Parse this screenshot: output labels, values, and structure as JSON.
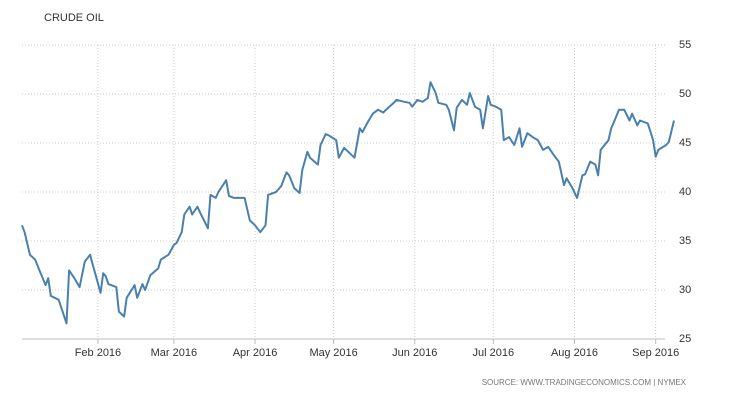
{
  "chart_data": {
    "type": "line",
    "title": "CRUDE OIL",
    "source": "SOURCE: WWW.TRADINGECONOMICS.COM | NYMEX",
    "x": [
      2,
      3,
      5,
      7,
      9,
      11,
      12,
      13,
      16,
      19,
      20,
      22,
      24,
      26,
      28,
      29,
      32,
      33,
      34,
      35,
      38,
      39,
      41,
      42,
      45,
      46,
      48,
      49,
      51,
      54,
      55,
      58,
      60,
      61,
      63,
      64,
      66,
      67,
      69,
      70,
      73,
      74,
      76,
      77,
      80,
      81,
      83,
      87,
      89,
      91,
      93,
      95,
      96,
      99,
      101,
      103,
      104,
      106,
      108,
      109,
      111,
      112,
      115,
      116,
      118,
      119,
      122,
      123,
      125,
      127,
      129,
      131,
      132,
      134,
      136,
      138,
      140,
      141,
      144,
      145,
      148,
      150,
      151,
      153,
      155,
      157,
      158,
      160,
      161,
      164,
      165,
      167,
      168,
      170,
      172,
      173,
      175,
      177,
      178,
      180,
      181,
      183,
      185,
      186,
      188,
      190,
      192,
      193,
      195,
      197,
      199,
      201,
      203,
      205,
      207,
      209,
      210,
      212,
      214,
      216,
      217,
      219,
      221,
      222,
      223,
      226,
      227,
      228,
      230,
      232,
      234,
      235,
      237,
      238,
      241,
      243,
      244,
      245,
      248,
      249,
      251
    ],
    "series": [
      {
        "name": "Crude Oil",
        "color": "#4a80ad",
        "values": [
          36.6,
          35.9,
          33.6,
          33.1,
          31.8,
          30.5,
          31.2,
          29.4,
          29,
          26.6,
          32,
          31.2,
          30.3,
          32.9,
          33.6,
          32.6,
          29.7,
          31.7,
          31.4,
          30.6,
          30.3,
          27.8,
          27.3,
          29.2,
          30.5,
          29.2,
          30.6,
          30,
          31.5,
          32.2,
          33.1,
          33.6,
          34.6,
          34.8,
          35.9,
          37.7,
          38.5,
          37.7,
          38.5,
          37.9,
          36.3,
          39.7,
          39.4,
          40,
          41.2,
          39.6,
          39.4,
          39.4,
          37.1,
          36.6,
          35.9,
          36.6,
          39.7,
          40,
          40.6,
          42,
          41.7,
          40.4,
          39.9,
          42.2,
          44.1,
          43.5,
          42.8,
          44.8,
          45.9,
          45.8,
          45.3,
          43.5,
          44.5,
          44,
          43.5,
          46.5,
          46.1,
          47.1,
          48,
          48.4,
          48.1,
          48.4,
          49.1,
          49.4,
          49.2,
          49.1,
          48.7,
          49.4,
          49.2,
          49.6,
          51.2,
          50.1,
          49.1,
          48.9,
          48.4,
          46.3,
          48.6,
          49.4,
          48.9,
          50.1,
          48.7,
          48.4,
          46.5,
          49.8,
          48.9,
          48.7,
          48.4,
          45.3,
          45.6,
          44.8,
          46.5,
          44.6,
          46,
          45.6,
          45.3,
          44.3,
          44.6,
          43.8,
          43.1,
          40.7,
          41.4,
          40.5,
          39.4,
          41.7,
          41.8,
          43.1,
          42.8,
          41.7,
          44.3,
          45.3,
          46.5,
          47.1,
          48.4,
          48.4,
          47.3,
          48,
          46.8,
          47.3,
          47,
          45.3,
          43.6,
          44.3,
          44.8,
          45.1,
          47.3
        ]
      }
    ],
    "xlim": [
      2,
      251
    ],
    "xticks": [
      {
        "value": 31,
        "label": "Feb 2016"
      },
      {
        "value": 60,
        "label": "Mar 2016"
      },
      {
        "value": 91,
        "label": "Apr 2016"
      },
      {
        "value": 121,
        "label": "May 2016"
      },
      {
        "value": 152,
        "label": "Jun 2016"
      },
      {
        "value": 182,
        "label": "Jul 2016"
      },
      {
        "value": 213,
        "label": "Aug 2016"
      },
      {
        "value": 244,
        "label": "Sep 2016"
      }
    ],
    "ylim": [
      25,
      55
    ],
    "yticks": [
      25,
      30,
      35,
      40,
      45,
      50,
      55
    ],
    "grid": true
  }
}
